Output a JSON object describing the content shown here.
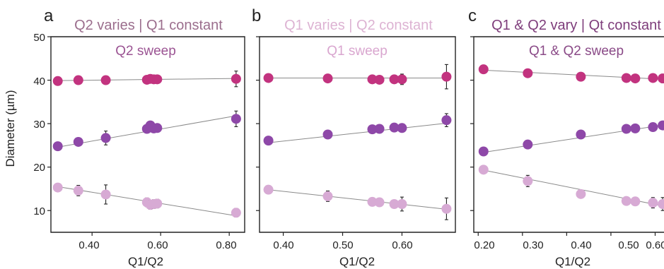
{
  "figure": {
    "ylabel": "Diameter (µm)"
  },
  "chart_data": [
    {
      "type": "scatter",
      "panel": "a",
      "title": "Q2 varies | Q1 constant",
      "title_color": "#9b6e8d",
      "annotation": "Q2 sweep",
      "annotation_color": "#9b5493",
      "xlabel": "Q1/Q2",
      "ylabel": "Diameter (µm)",
      "xlim": [
        0.28,
        0.845
      ],
      "ylim": [
        5,
        50
      ],
      "xticks": [
        0.4,
        0.6,
        0.8
      ],
      "xtick_labels": [
        "0.40",
        "0.60",
        "0.80"
      ],
      "yticks": [
        10,
        20,
        30,
        40,
        50
      ],
      "ytick_labels": [
        "10",
        "20",
        "30",
        "40",
        "50"
      ],
      "series": [
        {
          "color": "#c2337f",
          "x": [
            0.3,
            0.36,
            0.44,
            0.56,
            0.57,
            0.58,
            0.59,
            0.82
          ],
          "y": [
            39.8,
            40.0,
            40.0,
            40.1,
            40.3,
            40.2,
            40.2,
            40.3
          ],
          "err": [
            0,
            0,
            0,
            0.5,
            0.5,
            0.5,
            0.5,
            1.8
          ],
          "fit": [
            [
              0.3,
              39.9
            ],
            [
              0.82,
              40.4
            ]
          ]
        },
        {
          "color": "#8e48a8",
          "x": [
            0.3,
            0.36,
            0.44,
            0.56,
            0.57,
            0.58,
            0.59,
            0.82
          ],
          "y": [
            24.8,
            25.8,
            26.7,
            28.8,
            29.6,
            28.9,
            29.0,
            31.1
          ],
          "err": [
            0,
            0,
            1.6,
            0.8,
            0.8,
            0.8,
            0.8,
            1.8
          ],
          "fit": [
            [
              0.3,
              24.6
            ],
            [
              0.82,
              31.8
            ]
          ]
        },
        {
          "color": "#d7aad4",
          "x": [
            0.3,
            0.36,
            0.44,
            0.56,
            0.57,
            0.58,
            0.59,
            0.82
          ],
          "y": [
            15.3,
            14.6,
            13.7,
            11.9,
            11.3,
            11.5,
            11.6,
            9.5
          ],
          "err": [
            0,
            1.2,
            2.2,
            1.0,
            1.0,
            1.0,
            1.0,
            1.0
          ],
          "fit": [
            [
              0.3,
              15.5
            ],
            [
              0.82,
              8.8
            ]
          ]
        }
      ]
    },
    {
      "type": "scatter",
      "panel": "b",
      "title": "Q1 varies | Q2 constant",
      "title_color": "#ddb3d3",
      "annotation": "Q1 sweep",
      "annotation_color": "#d9a6cf",
      "xlabel": "Q1/Q2",
      "xlim": [
        0.36,
        0.69
      ],
      "ylim": [
        5,
        50
      ],
      "xticks": [
        0.4,
        0.5,
        0.6
      ],
      "xtick_labels": [
        "0.40",
        "0.50",
        "0.60"
      ],
      "yticks": [
        10,
        20,
        30,
        40,
        50
      ],
      "series": [
        {
          "color": "#c2337f",
          "x": [
            0.375,
            0.475,
            0.55,
            0.562,
            0.587,
            0.6,
            0.675
          ],
          "y": [
            40.5,
            40.4,
            40.2,
            40.1,
            40.2,
            40.2,
            40.8
          ],
          "err": [
            0,
            0,
            0,
            0,
            0.4,
            1.2,
            2.8
          ],
          "fit": [
            [
              0.375,
              40.5
            ],
            [
              0.675,
              40.5
            ]
          ]
        },
        {
          "color": "#8e48a8",
          "x": [
            0.375,
            0.475,
            0.55,
            0.562,
            0.587,
            0.6,
            0.675
          ],
          "y": [
            26.1,
            27.5,
            28.7,
            28.8,
            29.1,
            29.0,
            30.8
          ],
          "err": [
            0,
            0,
            0,
            0,
            0.6,
            0.6,
            1.5
          ],
          "fit": [
            [
              0.375,
              25.6
            ],
            [
              0.675,
              30.1
            ]
          ]
        },
        {
          "color": "#d7aad4",
          "x": [
            0.375,
            0.475,
            0.55,
            0.562,
            0.587,
            0.6,
            0.675
          ],
          "y": [
            14.8,
            13.3,
            12.0,
            11.9,
            11.5,
            11.5,
            10.4
          ],
          "err": [
            0,
            1.2,
            0,
            0,
            0.8,
            1.6,
            2.5
          ],
          "fit": [
            [
              0.375,
              14.8
            ],
            [
              0.675,
              10.3
            ]
          ]
        }
      ]
    },
    {
      "type": "scatter",
      "panel": "c",
      "title": "Q1 & Q2 vary | Qt constant",
      "title_color": "#7e3d7b",
      "annotation": "Q1 & Q2 sweep",
      "annotation_color": "#8a4a87",
      "xlabel": "Q1/Q2",
      "xlim": [
        0.19,
        0.62
      ],
      "ylim": [
        5,
        50
      ],
      "xticks": [
        0.2,
        0.3,
        0.4,
        0.5,
        0.6
      ],
      "xtick_labels": [
        "0.20",
        "0.30",
        "0.40",
        "0.50",
        "0.60"
      ],
      "yticks": [
        10,
        20,
        30,
        40,
        50
      ],
      "series": [
        {
          "color": "#c2337f",
          "x": [
            0.212,
            0.312,
            0.432,
            0.535,
            0.555,
            0.595,
            0.617
          ],
          "y": [
            42.5,
            41.6,
            40.8,
            40.5,
            40.4,
            40.5,
            40.4
          ],
          "err": [
            0,
            0,
            0,
            0,
            0,
            0,
            1.0
          ],
          "fit": [
            [
              0.212,
              42.3
            ],
            [
              0.62,
              40.2
            ]
          ]
        },
        {
          "color": "#8e48a8",
          "x": [
            0.212,
            0.312,
            0.432,
            0.535,
            0.555,
            0.595,
            0.617
          ],
          "y": [
            23.6,
            25.2,
            27.5,
            28.8,
            28.9,
            29.2,
            29.6
          ],
          "err": [
            0,
            0,
            0,
            0,
            0,
            0,
            0
          ],
          "fit": [
            [
              0.212,
              23.4
            ],
            [
              0.62,
              29.7
            ]
          ]
        },
        {
          "color": "#d7aad4",
          "x": [
            0.212,
            0.312,
            0.432,
            0.535,
            0.555,
            0.595,
            0.617
          ],
          "y": [
            19.4,
            16.8,
            13.8,
            12.2,
            12.1,
            11.8,
            11.5
          ],
          "err": [
            0,
            1.3,
            0,
            0,
            0,
            1.2,
            1.5
          ],
          "fit": [
            [
              0.212,
              19.3
            ],
            [
              0.62,
              11.0
            ]
          ]
        }
      ]
    }
  ]
}
